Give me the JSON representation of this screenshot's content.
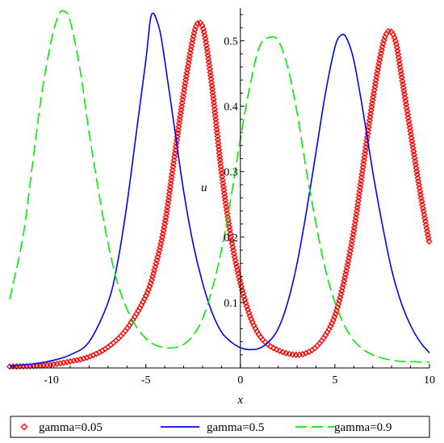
{
  "chart_data": {
    "type": "line",
    "xlabel": "x",
    "ylabel": "u",
    "xlim": [
      -12.2,
      10
    ],
    "ylim": [
      0,
      0.55
    ],
    "x_ticks": [
      -10,
      -5,
      0,
      5,
      10
    ],
    "y_ticks": [
      0.1,
      0.2,
      0.3,
      0.4,
      0.5
    ],
    "grid": false,
    "legend_position": "bottom",
    "series": [
      {
        "name": "gamma=0.05",
        "style": "points",
        "color": "#ff0000",
        "x": [
          -12.2,
          -11,
          -10,
          -9,
          -8,
          -7,
          -6,
          -5,
          -4.5,
          -4,
          -3.5,
          -3,
          -2.5,
          -2.2,
          -1.9,
          -1.5,
          -1,
          -0.5,
          0,
          0.5,
          1,
          1.5,
          2,
          2.5,
          3,
          3.5,
          4,
          4.5,
          5,
          5.5,
          6,
          6.5,
          7,
          7.5,
          7.85,
          8.2,
          8.5,
          9,
          9.5,
          10
        ],
        "y": [
          0.002,
          0.003,
          0.005,
          0.01,
          0.017,
          0.032,
          0.06,
          0.11,
          0.155,
          0.22,
          0.32,
          0.42,
          0.505,
          0.528,
          0.51,
          0.43,
          0.3,
          0.2,
          0.13,
          0.08,
          0.05,
          0.035,
          0.027,
          0.022,
          0.02,
          0.023,
          0.032,
          0.05,
          0.08,
          0.135,
          0.21,
          0.31,
          0.41,
          0.49,
          0.515,
          0.5,
          0.45,
          0.36,
          0.27,
          0.19
        ]
      },
      {
        "name": "gamma=0.5",
        "style": "solid",
        "color": "#0000ff",
        "x": [
          -12.2,
          -11,
          -10,
          -9,
          -8,
          -7,
          -6.5,
          -6,
          -5.5,
          -5,
          -4.7,
          -4.3,
          -4,
          -3.5,
          -3,
          -2.5,
          -2,
          -1.5,
          -1,
          -0.5,
          0,
          0.5,
          1,
          1.5,
          2,
          2.5,
          3,
          3.5,
          4,
          4.5,
          5,
          5.3,
          5.6,
          6,
          6.5,
          7,
          7.5,
          8,
          8.5,
          9,
          9.5,
          10
        ],
        "y": [
          0.003,
          0.006,
          0.011,
          0.02,
          0.04,
          0.1,
          0.16,
          0.25,
          0.36,
          0.47,
          0.54,
          0.52,
          0.47,
          0.37,
          0.27,
          0.19,
          0.13,
          0.085,
          0.055,
          0.04,
          0.031,
          0.028,
          0.03,
          0.04,
          0.06,
          0.1,
          0.16,
          0.24,
          0.33,
          0.42,
          0.49,
          0.508,
          0.505,
          0.47,
          0.39,
          0.3,
          0.22,
          0.15,
          0.1,
          0.065,
          0.04,
          0.023
        ]
      },
      {
        "name": "gamma=0.9",
        "style": "dash",
        "color": "#00ee00",
        "x": [
          -12.2,
          -11.5,
          -11,
          -10.5,
          -10,
          -9.6,
          -9.3,
          -9,
          -8.5,
          -8,
          -7.5,
          -7,
          -6.5,
          -6,
          -5.5,
          -5,
          -4.5,
          -4,
          -3.5,
          -3,
          -2.5,
          -2,
          -1.5,
          -1,
          -0.5,
          0,
          0.5,
          1,
          1.5,
          2,
          2.5,
          3,
          3.5,
          4,
          4.5,
          5,
          5.5,
          6,
          6.5,
          7,
          7.5,
          8,
          8.5,
          9,
          9.5,
          10
        ],
        "y": [
          0.105,
          0.2,
          0.31,
          0.42,
          0.5,
          0.54,
          0.545,
          0.53,
          0.46,
          0.36,
          0.27,
          0.19,
          0.13,
          0.09,
          0.063,
          0.045,
          0.035,
          0.031,
          0.031,
          0.036,
          0.05,
          0.075,
          0.12,
          0.18,
          0.26,
          0.35,
          0.43,
          0.49,
          0.505,
          0.5,
          0.46,
          0.39,
          0.3,
          0.22,
          0.15,
          0.1,
          0.065,
          0.042,
          0.028,
          0.02,
          0.015,
          0.012,
          0.01,
          0.01,
          0.009,
          0.009
        ]
      }
    ]
  }
}
